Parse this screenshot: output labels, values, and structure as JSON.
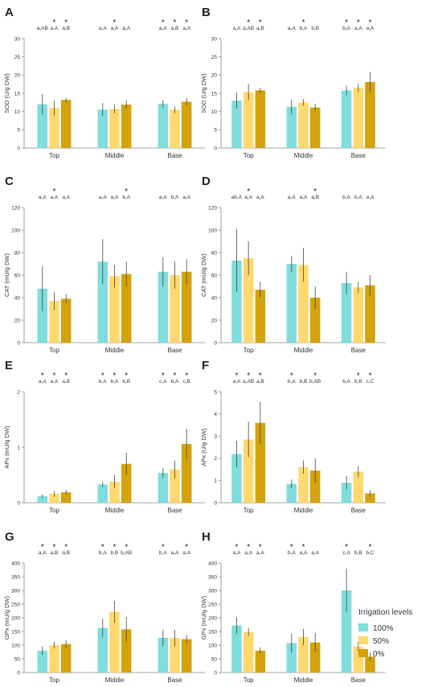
{
  "legend": {
    "title": "Irrigation levels",
    "items": [
      {
        "label": "100%",
        "color": "#7FDDDB"
      },
      {
        "label": "50%",
        "color": "#FFD86E"
      },
      {
        "label": "0%",
        "color": "#D4A20A"
      }
    ]
  },
  "chart_data": [
    {
      "id": "A",
      "type": "bar",
      "ylabel": "SOD (U/g DW)",
      "ylim": [
        0,
        30
      ],
      "yticks": [
        0,
        5,
        10,
        15,
        20,
        25,
        30
      ],
      "categories": [
        "Top",
        "Middle",
        "Base"
      ],
      "series": [
        {
          "name": "100%",
          "values": [
            12,
            10.5,
            12.1
          ],
          "errors": [
            2.8,
            1.8,
            1.0
          ]
        },
        {
          "name": "50%",
          "values": [
            11,
            10.7,
            10.5
          ],
          "errors": [
            2,
            1.2,
            0.9
          ]
        },
        {
          "name": "0%",
          "values": [
            13.2,
            11.9,
            12.7
          ],
          "errors": [
            0.6,
            1.2,
            1.0
          ]
        }
      ],
      "annotations": [
        [
          "a,AB",
          "a,A",
          "a,B"
        ],
        [
          "a,A",
          "a,A",
          "a,A"
        ],
        [
          "a,A",
          "a,B",
          "a,A"
        ]
      ],
      "stars": [
        [
          false,
          true,
          true
        ],
        [
          false,
          true,
          false
        ],
        [
          true,
          true,
          true
        ]
      ]
    },
    {
      "id": "B",
      "type": "bar",
      "ylabel": "SOD (U/g DW)",
      "ylim": [
        0,
        30
      ],
      "yticks": [
        0,
        5,
        10,
        15,
        20,
        25,
        30
      ],
      "categories": [
        "Top",
        "Middle",
        "Base"
      ],
      "series": [
        {
          "name": "100%",
          "values": [
            13,
            11.3,
            15.8
          ],
          "errors": [
            2.2,
            2,
            1.3
          ]
        },
        {
          "name": "50%",
          "values": [
            15.3,
            12.5,
            16.5
          ],
          "errors": [
            2.2,
            0.9,
            1.2
          ]
        },
        {
          "name": "0%",
          "values": [
            15.8,
            11.1,
            18.1
          ],
          "errors": [
            0.7,
            1,
            2.8
          ]
        }
      ],
      "annotations": [
        [
          "a,A",
          "a,AB",
          "a,B"
        ],
        [
          "a,A",
          "b,A",
          "b,B"
        ],
        [
          "b,A",
          "a,A",
          "a,A"
        ]
      ],
      "stars": [
        [
          false,
          true,
          true
        ],
        [
          false,
          true,
          false
        ],
        [
          true,
          true,
          true
        ]
      ]
    },
    {
      "id": "C",
      "type": "bar",
      "ylabel": "CAT (mU/g DW)",
      "ylim": [
        0,
        120
      ],
      "yticks": [
        0,
        20,
        40,
        60,
        80,
        100,
        120
      ],
      "categories": [
        "Top",
        "Middle",
        "Base"
      ],
      "series": [
        {
          "name": "100%",
          "values": [
            48,
            72,
            63
          ],
          "errors": [
            20,
            20,
            13
          ]
        },
        {
          "name": "50%",
          "values": [
            37,
            59,
            60
          ],
          "errors": [
            8,
            10,
            12
          ]
        },
        {
          "name": "0%",
          "values": [
            39,
            61,
            63
          ],
          "errors": [
            4,
            11,
            11
          ]
        }
      ],
      "annotations": [
        [
          "a,A",
          "a,A",
          "a,A"
        ],
        [
          "a,A",
          "a,A",
          "b,A"
        ],
        [
          "a,A",
          "b,A",
          "a,A"
        ]
      ],
      "stars": [
        [
          false,
          true,
          false
        ],
        [
          false,
          false,
          true
        ],
        [
          false,
          false,
          false
        ]
      ]
    },
    {
      "id": "D",
      "type": "bar",
      "ylabel": "CAT (mU/g DW)",
      "ylim": [
        0,
        120
      ],
      "yticks": [
        0,
        20,
        40,
        60,
        80,
        100,
        120
      ],
      "categories": [
        "Top",
        "Middle",
        "Base"
      ],
      "series": [
        {
          "name": "100%",
          "values": [
            73,
            70,
            53
          ],
          "errors": [
            28,
            7,
            10
          ]
        },
        {
          "name": "50%",
          "values": [
            75,
            69,
            49
          ],
          "errors": [
            15,
            15,
            5
          ]
        },
        {
          "name": "0%",
          "values": [
            47,
            40,
            51
          ],
          "errors": [
            7,
            10,
            9
          ]
        }
      ],
      "annotations": [
        [
          "ab,A",
          "a,A",
          "a,A"
        ],
        [
          "a,A",
          "a,A",
          "a,B"
        ],
        [
          "b,A",
          "b,A",
          "a,A"
        ]
      ],
      "stars": [
        [
          false,
          true,
          false
        ],
        [
          false,
          false,
          true
        ],
        [
          false,
          false,
          false
        ]
      ]
    },
    {
      "id": "E",
      "type": "bar",
      "ylabel": "APx (mU/g DW)",
      "ylim": [
        0,
        2
      ],
      "yticks": [
        0,
        1,
        2
      ],
      "categories": [
        "Top",
        "Middle",
        "Base"
      ],
      "series": [
        {
          "name": "100%",
          "values": [
            0.12,
            0.33,
            0.54
          ],
          "errors": [
            0.03,
            0.05,
            0.08
          ]
        },
        {
          "name": "50%",
          "values": [
            0.16,
            0.38,
            0.6
          ],
          "errors": [
            0.05,
            0.12,
            0.16
          ]
        },
        {
          "name": "0%",
          "values": [
            0.19,
            0.7,
            1.06
          ],
          "errors": [
            0.04,
            0.2,
            0.27
          ]
        }
      ],
      "annotations": [
        [
          "a,A",
          "a,A",
          "a,B"
        ],
        [
          "b,A",
          "b,A",
          "b,B"
        ],
        [
          "c,A",
          "b,A",
          "c,B"
        ]
      ],
      "stars": [
        [
          true,
          true,
          true
        ],
        [
          true,
          true,
          true
        ],
        [
          true,
          true,
          true
        ]
      ]
    },
    {
      "id": "F",
      "type": "bar",
      "ylabel": "APx (U/g DW)",
      "ylim": [
        0,
        5
      ],
      "yticks": [
        0,
        1,
        2,
        3,
        4,
        5
      ],
      "categories": [
        "Top",
        "Middle",
        "Base"
      ],
      "series": [
        {
          "name": "100%",
          "values": [
            2.2,
            0.85,
            0.9
          ],
          "errors": [
            0.6,
            0.2,
            0.3
          ]
        },
        {
          "name": "50%",
          "values": [
            2.85,
            1.6,
            1.4
          ],
          "errors": [
            0.8,
            0.3,
            0.25
          ]
        },
        {
          "name": "0%",
          "values": [
            3.6,
            1.45,
            0.42
          ],
          "errors": [
            0.95,
            0.55,
            0.15
          ]
        }
      ],
      "annotations": [
        [
          "a,A",
          "a,AB",
          "a,B"
        ],
        [
          "b,A",
          "b,B",
          "b,AB"
        ],
        [
          "b,A",
          "b,B",
          "c,C"
        ]
      ],
      "stars": [
        [
          true,
          true,
          true
        ],
        [
          true,
          false,
          true
        ],
        [
          false,
          true,
          true
        ]
      ]
    },
    {
      "id": "G",
      "type": "bar",
      "ylabel": "GPx (mU/g DW)",
      "ylim": [
        0,
        400
      ],
      "yticks": [
        0,
        50,
        100,
        150,
        200,
        250,
        300,
        350,
        400
      ],
      "categories": [
        "Top",
        "Middle",
        "Base"
      ],
      "series": [
        {
          "name": "100%",
          "values": [
            80,
            163,
            127
          ],
          "errors": [
            15,
            33,
            30
          ]
        },
        {
          "name": "50%",
          "values": [
            100,
            222,
            126
          ],
          "errors": [
            12,
            40,
            30
          ]
        },
        {
          "name": "0%",
          "values": [
            104,
            158,
            122
          ],
          "errors": [
            14,
            45,
            15
          ]
        }
      ],
      "annotations": [
        [
          "a,A",
          "a,B",
          "a,B"
        ],
        [
          "b,A",
          "b,B",
          "b,AB"
        ],
        [
          "b,A",
          "a,A",
          "a,A"
        ]
      ],
      "stars": [
        [
          true,
          true,
          true
        ],
        [
          true,
          true,
          true
        ],
        [
          true,
          false,
          true
        ]
      ]
    },
    {
      "id": "H",
      "type": "bar",
      "ylabel": "GPx (mU/g DW)",
      "ylim": [
        0,
        400
      ],
      "yticks": [
        0,
        50,
        100,
        150,
        200,
        250,
        300,
        350,
        400
      ],
      "categories": [
        "Top",
        "Middle",
        "Base"
      ],
      "series": [
        {
          "name": "100%",
          "values": [
            172,
            108,
            300
          ],
          "errors": [
            30,
            35,
            80
          ]
        },
        {
          "name": "50%",
          "values": [
            148,
            130,
            95
          ],
          "errors": [
            15,
            30,
            18
          ]
        },
        {
          "name": "0%",
          "values": [
            80,
            110,
            58
          ],
          "errors": [
            12,
            35,
            15
          ]
        }
      ],
      "annotations": [
        [
          "a,A",
          "a,A",
          "a,A"
        ],
        [
          "b,A",
          "a,A",
          "a,A"
        ],
        [
          "c,A",
          "b,B",
          "b,C"
        ]
      ],
      "stars": [
        [
          true,
          true,
          true
        ],
        [
          true,
          true,
          false
        ],
        [
          true,
          false,
          true
        ]
      ]
    }
  ]
}
